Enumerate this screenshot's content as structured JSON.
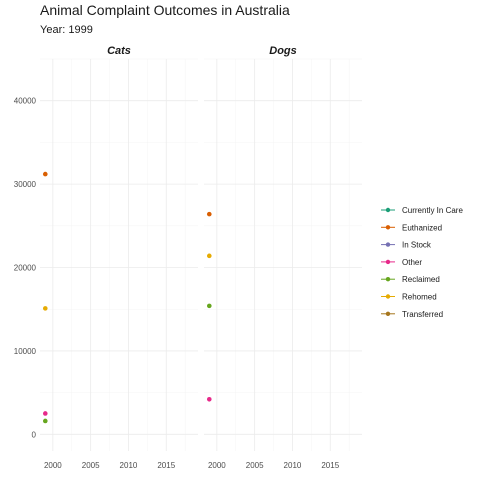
{
  "chart_data": {
    "type": "scatter",
    "title": "Animal Complaint Outcomes in Australia",
    "subtitle": "Year: 1999",
    "xlabel": "",
    "ylabel": "",
    "xlim": [
      1998.3,
      2019.2
    ],
    "ylim": [
      -2000,
      45000
    ],
    "x_ticks": [
      2000,
      2005,
      2010,
      2015
    ],
    "y_ticks": [
      0,
      10000,
      20000,
      30000,
      40000
    ],
    "grid": true,
    "legend_position": "right",
    "facets": [
      "Cats",
      "Dogs"
    ],
    "series": [
      {
        "name": "Currently In Care",
        "color": "#1b9e77",
        "points": {
          "Cats": [],
          "Dogs": []
        }
      },
      {
        "name": "Euthanized",
        "color": "#d95f02",
        "points": {
          "Cats": [
            [
              1999,
              31200
            ]
          ],
          "Dogs": [
            [
              1999,
              26400
            ]
          ]
        }
      },
      {
        "name": "In Stock",
        "color": "#7570b3",
        "points": {
          "Cats": [],
          "Dogs": []
        }
      },
      {
        "name": "Other",
        "color": "#e7298a",
        "points": {
          "Cats": [
            [
              1999,
              2500
            ]
          ],
          "Dogs": [
            [
              1999,
              4200
            ]
          ]
        }
      },
      {
        "name": "Reclaimed",
        "color": "#66a61e",
        "points": {
          "Cats": [
            [
              1999,
              1600
            ]
          ],
          "Dogs": [
            [
              1999,
              15400
            ]
          ]
        }
      },
      {
        "name": "Rehomed",
        "color": "#e6ab02",
        "points": {
          "Cats": [
            [
              1999,
              15100
            ]
          ],
          "Dogs": [
            [
              1999,
              21400
            ]
          ]
        }
      },
      {
        "name": "Transferred",
        "color": "#a6761d",
        "points": {
          "Cats": [],
          "Dogs": []
        }
      }
    ]
  }
}
